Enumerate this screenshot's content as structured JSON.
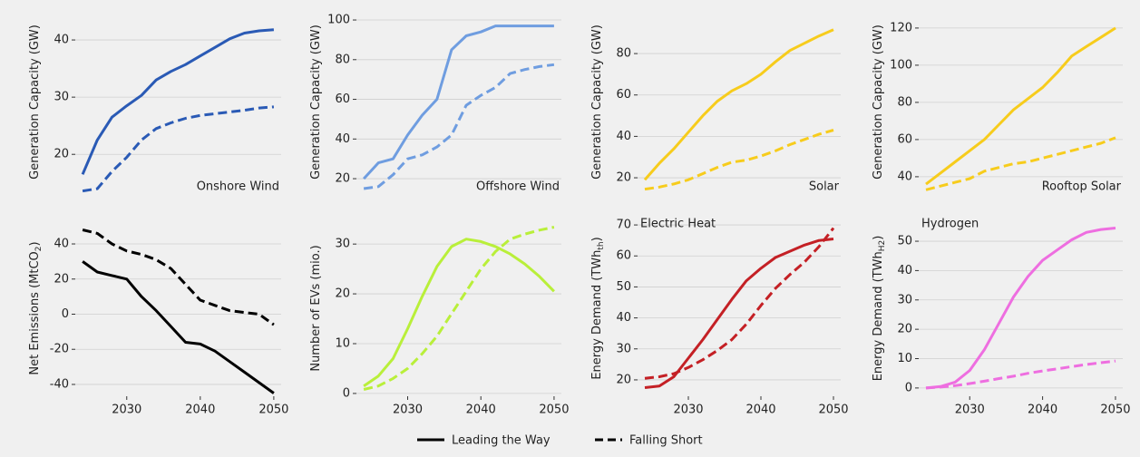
{
  "chart_data": [
    {
      "type": "line",
      "ylabel": "Generation Capacity (GW)",
      "annotation": "Onshore Wind",
      "annotation_color": "#2a5ab5",
      "annotation_loc": "lower right",
      "x": [
        2024,
        2026,
        2028,
        2030,
        2032,
        2034,
        2036,
        2038,
        2040,
        2042,
        2044,
        2046,
        2048,
        2050
      ],
      "xlim": [
        2023,
        2051
      ],
      "ylim": [
        12.9,
        45.4
      ],
      "yticks": [
        20,
        30,
        40
      ],
      "grid": true,
      "series": [
        {
          "name": "Leading the Way",
          "color": "#2a5ab5",
          "linestyle": "solid",
          "values": [
            16.5,
            22.5,
            26.5,
            28.5,
            30.3,
            33,
            34.5,
            35.7,
            37.2,
            38.7,
            40.2,
            41.2,
            41.6,
            41.8
          ]
        },
        {
          "name": "Falling Short",
          "color": "#2a5ab5",
          "linestyle": "dashed",
          "values": [
            13.6,
            14,
            17,
            19.5,
            22.5,
            24.5,
            25.5,
            26.3,
            26.8,
            27.1,
            27.4,
            27.7,
            28.1,
            28.3
          ]
        }
      ]
    },
    {
      "type": "line",
      "ylabel": "Generation Capacity (GW)",
      "annotation": "Offshore Wind",
      "annotation_color": "#6f9de0",
      "annotation_loc": "lower right",
      "x": [
        2024,
        2026,
        2028,
        2030,
        2032,
        2034,
        2036,
        2038,
        2040,
        2042,
        2044,
        2046,
        2048,
        2050
      ],
      "xlim": [
        2023,
        2051
      ],
      "ylim": [
        11.8,
        105.5
      ],
      "yticks": [
        20,
        40,
        60,
        80,
        100
      ],
      "grid": true,
      "series": [
        {
          "name": "Leading the Way",
          "color": "#6f9de0",
          "linestyle": "solid",
          "values": [
            20,
            28,
            30,
            42,
            52,
            60,
            85,
            92,
            94,
            97,
            97,
            97,
            97,
            97
          ]
        },
        {
          "name": "Falling Short",
          "color": "#6f9de0",
          "linestyle": "dashed",
          "values": [
            15,
            16,
            22,
            30,
            32,
            36,
            42,
            57,
            62,
            66,
            73,
            75,
            76.5,
            77.5
          ]
        }
      ]
    },
    {
      "type": "line",
      "ylabel": "Generation Capacity (GW)",
      "annotation": "Solar",
      "annotation_color": "#7a6a10",
      "annotation_loc": "lower right",
      "x": [
        2024,
        2026,
        2028,
        2030,
        2032,
        2034,
        2036,
        2038,
        2040,
        2042,
        2044,
        2046,
        2048,
        2050
      ],
      "xlim": [
        2023,
        2051
      ],
      "ylim": [
        11.7,
        101.5
      ],
      "yticks": [
        20,
        40,
        60,
        80
      ],
      "grid": true,
      "series": [
        {
          "name": "Leading the Way",
          "color": "#f7cc1c",
          "linestyle": "solid",
          "values": [
            19,
            27,
            34,
            42,
            50,
            57,
            62,
            65.5,
            70,
            76,
            81.5,
            85,
            88.5,
            91.5
          ]
        },
        {
          "name": "Falling Short",
          "color": "#f7cc1c",
          "linestyle": "dashed",
          "values": [
            14.5,
            15.5,
            17,
            19,
            22,
            25,
            27.5,
            28.5,
            30.5,
            33,
            36,
            38.5,
            41,
            43
          ]
        }
      ]
    },
    {
      "type": "line",
      "ylabel": "Generation Capacity (GW)",
      "annotation": "Rooftop Solar",
      "annotation_color": "#7a6a10",
      "annotation_loc": "lower right",
      "x": [
        2024,
        2026,
        2028,
        2030,
        2032,
        2034,
        2036,
        2038,
        2040,
        2042,
        2044,
        2046,
        2048,
        2050
      ],
      "xlim": [
        2023,
        2051
      ],
      "ylim": [
        30.2,
        130.2
      ],
      "yticks": [
        40,
        60,
        80,
        100,
        120
      ],
      "grid": true,
      "series": [
        {
          "name": "Leading the Way",
          "color": "#f7cc1c",
          "linestyle": "solid",
          "values": [
            36,
            42,
            48,
            54,
            60,
            68,
            76,
            82,
            88,
            96,
            105,
            110,
            115,
            120
          ]
        },
        {
          "name": "Falling Short",
          "color": "#f7cc1c",
          "linestyle": "dashed",
          "values": [
            33,
            35,
            37,
            39,
            43,
            45,
            47,
            48,
            50,
            52,
            54,
            56,
            58,
            61
          ]
        }
      ]
    },
    {
      "type": "line",
      "ylabel": "Net Emissions (MtCO",
      "ylabel_sub": "2",
      "ylabel_end": ")",
      "x": [
        2024,
        2026,
        2028,
        2030,
        2032,
        2034,
        2036,
        2038,
        2040,
        2042,
        2044,
        2046,
        2048,
        2050
      ],
      "xlim": [
        2023,
        2051
      ],
      "xticks": [
        2030,
        2040,
        2050
      ],
      "ylim": [
        -45.7,
        52.4
      ],
      "yticks": [
        -40,
        -20,
        0,
        20,
        40
      ],
      "grid": true,
      "series": [
        {
          "name": "Leading the Way",
          "color": "#000000",
          "linestyle": "solid",
          "values": [
            30,
            24,
            22,
            20,
            10,
            2,
            -7,
            -16,
            -17,
            -21,
            -27,
            -33,
            -39,
            -45
          ]
        },
        {
          "name": "Falling Short",
          "color": "#000000",
          "linestyle": "dashed",
          "values": [
            48,
            46,
            40,
            36,
            34,
            31,
            26,
            17,
            8,
            5,
            2,
            1,
            0,
            -6
          ]
        }
      ]
    },
    {
      "type": "line",
      "ylabel": "Number of EVs (mio.)",
      "x": [
        2024,
        2026,
        2028,
        2030,
        2032,
        2034,
        2036,
        2038,
        2040,
        2042,
        2044,
        2046,
        2048,
        2050
      ],
      "xlim": [
        2023,
        2051
      ],
      "xticks": [
        2030,
        2040,
        2050
      ],
      "ylim": [
        -0.2,
        34.4
      ],
      "yticks": [
        0,
        10,
        20,
        30
      ],
      "grid": true,
      "series": [
        {
          "name": "Leading the Way",
          "color": "#b9ef3a",
          "linestyle": "solid",
          "values": [
            1.5,
            3.5,
            7,
            13,
            19.5,
            25.5,
            29.5,
            31,
            30.5,
            29.5,
            28,
            26,
            23.5,
            20.5
          ]
        },
        {
          "name": "Falling Short",
          "color": "#b9ef3a",
          "linestyle": "dashed",
          "values": [
            0.8,
            1.5,
            3,
            5,
            8,
            11.5,
            16,
            20.5,
            25,
            28.5,
            31,
            32,
            32.8,
            33.4
          ]
        }
      ]
    },
    {
      "type": "line",
      "ylabel": "Energy Demand (TWh",
      "ylabel_sub": "th",
      "ylabel_end": ")",
      "annotation": "Electric Heat",
      "annotation_color": "#c42025",
      "annotation_loc": "upper left",
      "x": [
        2024,
        2026,
        2028,
        2030,
        2032,
        2034,
        2036,
        2038,
        2040,
        2042,
        2044,
        2046,
        2048,
        2050
      ],
      "xlim": [
        2023,
        2051
      ],
      "xticks": [
        2030,
        2040,
        2050
      ],
      "ylim": [
        15.3,
        70.9
      ],
      "yticks": [
        20,
        30,
        40,
        50,
        60,
        70
      ],
      "grid": true,
      "series": [
        {
          "name": "Leading the Way",
          "color": "#c42025",
          "linestyle": "solid",
          "values": [
            17.5,
            18,
            21,
            27,
            33,
            39.5,
            46,
            52,
            56,
            59.5,
            61.5,
            63.5,
            65,
            65.5
          ]
        },
        {
          "name": "Falling Short",
          "color": "#c42025",
          "linestyle": "dashed",
          "values": [
            20.5,
            21,
            22,
            24,
            26.5,
            29.5,
            33,
            38,
            44,
            49.5,
            54,
            58,
            63,
            69
          ]
        }
      ]
    },
    {
      "type": "line",
      "ylabel": "Energy Demand (TWh",
      "ylabel_sub": "H2",
      "ylabel_end": ")",
      "annotation": "Hydrogen",
      "annotation_color": "#ee6ee0",
      "annotation_loc": "upper left",
      "x": [
        2024,
        2026,
        2028,
        2030,
        2032,
        2034,
        2036,
        2038,
        2040,
        2042,
        2044,
        2046,
        2048,
        2050
      ],
      "xlim": [
        2023,
        2051
      ],
      "xticks": [
        2030,
        2040,
        2050
      ],
      "ylim": [
        -2.2,
        56.5
      ],
      "yticks": [
        0,
        10,
        20,
        30,
        40,
        50
      ],
      "grid": true,
      "series": [
        {
          "name": "Leading the Way",
          "color": "#ee6ee0",
          "linestyle": "solid",
          "values": [
            0,
            0.5,
            2,
            6,
            13,
            22,
            31,
            38,
            43.5,
            47,
            50.5,
            53,
            54,
            54.5
          ]
        },
        {
          "name": "Falling Short",
          "color": "#ee6ee0",
          "linestyle": "dashed",
          "values": [
            0,
            0.3,
            0.8,
            1.5,
            2.3,
            3.2,
            4,
            5,
            5.8,
            6.5,
            7.3,
            8,
            8.6,
            9.2
          ]
        }
      ]
    }
  ]
}
